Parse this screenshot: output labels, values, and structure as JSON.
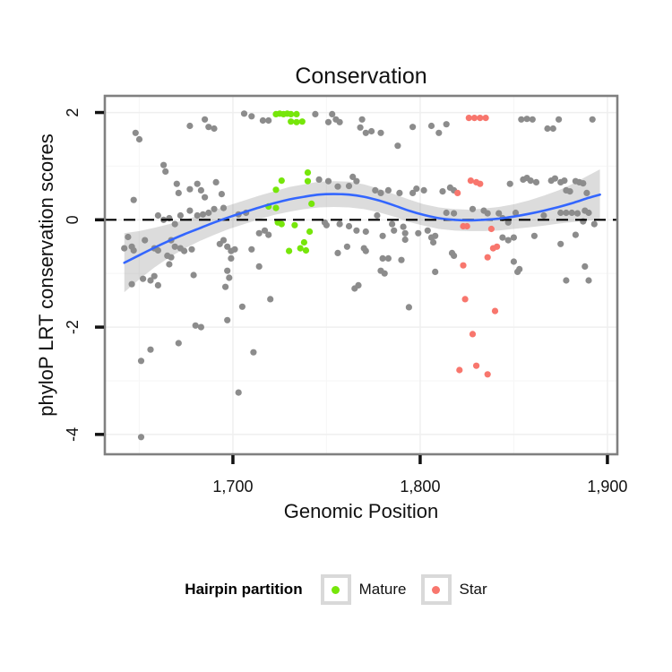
{
  "chart_data": {
    "type": "scatter",
    "title": "Conservation",
    "xlabel": "Genomic Position",
    "ylabel": "phyloP LRT conservation scores",
    "xlim": [
      1631.6,
      1905.3
    ],
    "ylim": [
      -4.37,
      2.31
    ],
    "grid": true,
    "x_ticks": {
      "values": [
        1700,
        1800,
        1900
      ],
      "labels": [
        "1,700",
        "1,800",
        "1,900"
      ]
    },
    "x_minor_ticks": [
      1650,
      1750,
      1850
    ],
    "y_ticks": {
      "values": [
        2,
        0,
        -2,
        -4
      ],
      "labels": [
        "2",
        "0",
        "-2",
        "-4"
      ]
    },
    "y_minor_ticks": [
      1,
      -1,
      -3
    ],
    "hline_y": 0,
    "colors": {
      "other": "#8C8C8C",
      "mature": "#76E60A",
      "star": "#F8766D",
      "smooth_line": "#3366FF",
      "ribbon": "rgba(125,125,125,0.27)",
      "grid_major": "#EFEFEF",
      "grid_minor": "#F7F7F7",
      "panel_border": "#808080",
      "tick": "#111111",
      "hline": "#000000"
    },
    "legend": {
      "title": "Hairpin partition",
      "position": "bottom",
      "items": [
        {
          "label": "Mature",
          "color_key": "mature"
        },
        {
          "label": "Star",
          "color_key": "star"
        }
      ]
    },
    "series": [
      {
        "name": "Other",
        "color_key": "other",
        "points": [
          [
            1648,
            1.62
          ],
          [
            1650,
            1.5
          ],
          [
            1677,
            1.75
          ],
          [
            1685,
            1.87
          ],
          [
            1687,
            1.73
          ],
          [
            1690,
            1.7
          ],
          [
            1706,
            1.98
          ],
          [
            1710,
            1.93
          ],
          [
            1716,
            1.85
          ],
          [
            1719,
            1.85
          ],
          [
            1744,
            1.97
          ],
          [
            1753,
            1.97
          ],
          [
            1755,
            1.87
          ],
          [
            1751,
            1.82
          ],
          [
            1757,
            1.82
          ],
          [
            1769,
            1.87
          ],
          [
            1768,
            1.72
          ],
          [
            1771,
            1.62
          ],
          [
            1774,
            1.65
          ],
          [
            1779,
            1.62
          ],
          [
            1788,
            1.38
          ],
          [
            1796,
            1.73
          ],
          [
            1806,
            1.75
          ],
          [
            1810,
            1.62
          ],
          [
            1814,
            1.78
          ],
          [
            1854,
            1.87
          ],
          [
            1857,
            1.88
          ],
          [
            1860,
            1.87
          ],
          [
            1868,
            1.7
          ],
          [
            1871,
            1.7
          ],
          [
            1874,
            1.87
          ],
          [
            1892,
            1.87
          ],
          [
            1663,
            1.02
          ],
          [
            1664,
            0.9
          ],
          [
            1647,
            0.37
          ],
          [
            1670,
            0.67
          ],
          [
            1671,
            0.5
          ],
          [
            1677,
            0.57
          ],
          [
            1681,
            0.67
          ],
          [
            1683,
            0.55
          ],
          [
            1685,
            0.42
          ],
          [
            1691,
            0.7
          ],
          [
            1694,
            0.48
          ],
          [
            1746,
            0.75
          ],
          [
            1751,
            0.72
          ],
          [
            1756,
            0.62
          ],
          [
            1762,
            0.63
          ],
          [
            1764,
            0.8
          ],
          [
            1766,
            0.72
          ],
          [
            1776,
            0.55
          ],
          [
            1779,
            0.5
          ],
          [
            1783,
            0.55
          ],
          [
            1789,
            0.5
          ],
          [
            1796,
            0.5
          ],
          [
            1798,
            0.58
          ],
          [
            1802,
            0.55
          ],
          [
            1812,
            0.53
          ],
          [
            1816,
            0.6
          ],
          [
            1818,
            0.55
          ],
          [
            1848,
            0.67
          ],
          [
            1855,
            0.75
          ],
          [
            1857,
            0.78
          ],
          [
            1859,
            0.73
          ],
          [
            1862,
            0.7
          ],
          [
            1870,
            0.73
          ],
          [
            1872,
            0.77
          ],
          [
            1875,
            0.7
          ],
          [
            1877,
            0.73
          ],
          [
            1878,
            0.55
          ],
          [
            1880,
            0.53
          ],
          [
            1883,
            0.72
          ],
          [
            1885,
            0.7
          ],
          [
            1887,
            0.68
          ],
          [
            1889,
            0.5
          ],
          [
            1660,
            0.08
          ],
          [
            1663,
            0.0
          ],
          [
            1666,
            0.03
          ],
          [
            1669,
            -0.08
          ],
          [
            1672,
            0.08
          ],
          [
            1677,
            0.17
          ],
          [
            1681,
            0.08
          ],
          [
            1684,
            0.1
          ],
          [
            1687,
            0.13
          ],
          [
            1690,
            0.2
          ],
          [
            1695,
            0.22
          ],
          [
            1703,
            0.1
          ],
          [
            1707,
            0.13
          ],
          [
            1714,
            -0.25
          ],
          [
            1717,
            -0.2
          ],
          [
            1719,
            -0.28
          ],
          [
            1749,
            -0.05
          ],
          [
            1750,
            -0.1
          ],
          [
            1757,
            -0.08
          ],
          [
            1762,
            -0.12
          ],
          [
            1766,
            -0.2
          ],
          [
            1771,
            -0.22
          ],
          [
            1777,
            0.08
          ],
          [
            1785,
            -0.08
          ],
          [
            1786,
            -0.2
          ],
          [
            1791,
            -0.13
          ],
          [
            1792,
            -0.25
          ],
          [
            1799,
            -0.25
          ],
          [
            1804,
            -0.2
          ],
          [
            1814,
            0.13
          ],
          [
            1818,
            0.12
          ],
          [
            1828,
            0.2
          ],
          [
            1834,
            0.17
          ],
          [
            1836,
            0.12
          ],
          [
            1842,
            0.12
          ],
          [
            1844,
            0.03
          ],
          [
            1847,
            -0.05
          ],
          [
            1851,
            0.13
          ],
          [
            1866,
            0.08
          ],
          [
            1875,
            0.13
          ],
          [
            1878,
            0.13
          ],
          [
            1881,
            0.13
          ],
          [
            1884,
            0.12
          ],
          [
            1888,
            0.17
          ],
          [
            1890,
            0.13
          ],
          [
            1887,
            -0.03
          ],
          [
            1893,
            -0.08
          ],
          [
            1644,
            -0.32
          ],
          [
            1642,
            -0.53
          ],
          [
            1646,
            -0.5
          ],
          [
            1647,
            -0.57
          ],
          [
            1653,
            -0.38
          ],
          [
            1658,
            -0.53
          ],
          [
            1660,
            -0.57
          ],
          [
            1665,
            -0.67
          ],
          [
            1667,
            -0.7
          ],
          [
            1667,
            -0.38
          ],
          [
            1669,
            -0.5
          ],
          [
            1672,
            -0.53
          ],
          [
            1674,
            -0.58
          ],
          [
            1678,
            -0.55
          ],
          [
            1666,
            -0.83
          ],
          [
            1693,
            -0.45
          ],
          [
            1695,
            -0.38
          ],
          [
            1697,
            -0.5
          ],
          [
            1699,
            -0.58
          ],
          [
            1701,
            -0.55
          ],
          [
            1699,
            -0.72
          ],
          [
            1710,
            -0.55
          ],
          [
            1714,
            -0.87
          ],
          [
            1756,
            -0.62
          ],
          [
            1761,
            -0.5
          ],
          [
            1770,
            -0.53
          ],
          [
            1771,
            -0.58
          ],
          [
            1780,
            -0.72
          ],
          [
            1783,
            -0.72
          ],
          [
            1790,
            -0.75
          ],
          [
            1779,
            -0.95
          ],
          [
            1792,
            -0.37
          ],
          [
            1780,
            -0.3
          ],
          [
            1806,
            -0.33
          ],
          [
            1808,
            -0.3
          ],
          [
            1807,
            -0.42
          ],
          [
            1817,
            -0.62
          ],
          [
            1818,
            -0.67
          ],
          [
            1844,
            -0.33
          ],
          [
            1847,
            -0.38
          ],
          [
            1850,
            -0.33
          ],
          [
            1861,
            -0.3
          ],
          [
            1875,
            -0.45
          ],
          [
            1883,
            -0.28
          ],
          [
            1850,
            -0.78
          ],
          [
            1853,
            -0.92
          ],
          [
            1852,
            -0.97
          ],
          [
            1888,
            -0.87
          ],
          [
            1646,
            -1.2
          ],
          [
            1652,
            -1.1
          ],
          [
            1656,
            -1.13
          ],
          [
            1658,
            -1.05
          ],
          [
            1660,
            -1.22
          ],
          [
            1679,
            -1.03
          ],
          [
            1680,
            -1.97
          ],
          [
            1683,
            -2.0
          ],
          [
            1671,
            -2.3
          ],
          [
            1656,
            -2.42
          ],
          [
            1651,
            -2.63
          ],
          [
            1696,
            -1.25
          ],
          [
            1698,
            -1.08
          ],
          [
            1697,
            -0.95
          ],
          [
            1705,
            -1.62
          ],
          [
            1697,
            -1.87
          ],
          [
            1711,
            -2.47
          ],
          [
            1703,
            -3.22
          ],
          [
            1651,
            -4.05
          ],
          [
            1720,
            -1.48
          ],
          [
            1765,
            -1.28
          ],
          [
            1767,
            -1.22
          ],
          [
            1781,
            -1.0
          ],
          [
            1794,
            -1.63
          ],
          [
            1808,
            -0.97
          ],
          [
            1878,
            -1.13
          ],
          [
            1890,
            -1.13
          ]
        ]
      },
      {
        "name": "Mature",
        "color_key": "mature",
        "points": [
          [
            1723,
            1.97
          ],
          [
            1725,
            1.98
          ],
          [
            1727,
            1.97
          ],
          [
            1729,
            1.98
          ],
          [
            1731,
            1.97
          ],
          [
            1734,
            1.97
          ],
          [
            1731,
            1.83
          ],
          [
            1734,
            1.82
          ],
          [
            1737,
            1.83
          ],
          [
            1740,
            0.88
          ],
          [
            1726,
            0.73
          ],
          [
            1740,
            0.72
          ],
          [
            1723,
            0.56
          ],
          [
            1719,
            0.25
          ],
          [
            1723,
            0.22
          ],
          [
            1742,
            0.3
          ],
          [
            1724,
            -0.05
          ],
          [
            1726,
            -0.08
          ],
          [
            1733,
            -0.1
          ],
          [
            1741,
            -0.22
          ],
          [
            1738,
            -0.42
          ],
          [
            1736,
            -0.53
          ],
          [
            1739,
            -0.57
          ],
          [
            1730,
            -0.58
          ]
        ]
      },
      {
        "name": "Star",
        "color_key": "star",
        "points": [
          [
            1826,
            1.9
          ],
          [
            1829,
            1.9
          ],
          [
            1832,
            1.9
          ],
          [
            1835,
            1.9
          ],
          [
            1827,
            0.73
          ],
          [
            1830,
            0.7
          ],
          [
            1832,
            0.67
          ],
          [
            1820,
            0.5
          ],
          [
            1823,
            -0.12
          ],
          [
            1825,
            -0.12
          ],
          [
            1838,
            -0.17
          ],
          [
            1839,
            -0.53
          ],
          [
            1841,
            -0.5
          ],
          [
            1836,
            -0.7
          ],
          [
            1823,
            -0.85
          ],
          [
            1824,
            -1.48
          ],
          [
            1840,
            -1.7
          ],
          [
            1828,
            -2.13
          ],
          [
            1830,
            -2.72
          ],
          [
            1821,
            -2.8
          ],
          [
            1836,
            -2.88
          ]
        ]
      }
    ],
    "smooth": {
      "x": [
        1642,
        1650,
        1658,
        1666,
        1674,
        1682,
        1690,
        1698,
        1706,
        1714,
        1722,
        1730,
        1738,
        1746,
        1754,
        1762,
        1770,
        1778,
        1786,
        1794,
        1802,
        1810,
        1818,
        1826,
        1834,
        1842,
        1850,
        1858,
        1866,
        1874,
        1882,
        1890,
        1896
      ],
      "y": [
        -0.8,
        -0.66,
        -0.52,
        -0.39,
        -0.27,
        -0.16,
        -0.05,
        0.05,
        0.14,
        0.23,
        0.31,
        0.38,
        0.43,
        0.47,
        0.48,
        0.47,
        0.43,
        0.36,
        0.27,
        0.17,
        0.09,
        0.03,
        0.0,
        -0.01,
        0.0,
        0.02,
        0.06,
        0.11,
        0.17,
        0.24,
        0.32,
        0.41,
        0.47
      ],
      "ci_half": [
        0.55,
        0.45,
        0.37,
        0.31,
        0.27,
        0.24,
        0.23,
        0.22,
        0.22,
        0.22,
        0.22,
        0.23,
        0.23,
        0.24,
        0.24,
        0.24,
        0.23,
        0.22,
        0.21,
        0.21,
        0.2,
        0.2,
        0.2,
        0.2,
        0.21,
        0.22,
        0.23,
        0.25,
        0.28,
        0.31,
        0.36,
        0.42,
        0.47
      ]
    }
  }
}
